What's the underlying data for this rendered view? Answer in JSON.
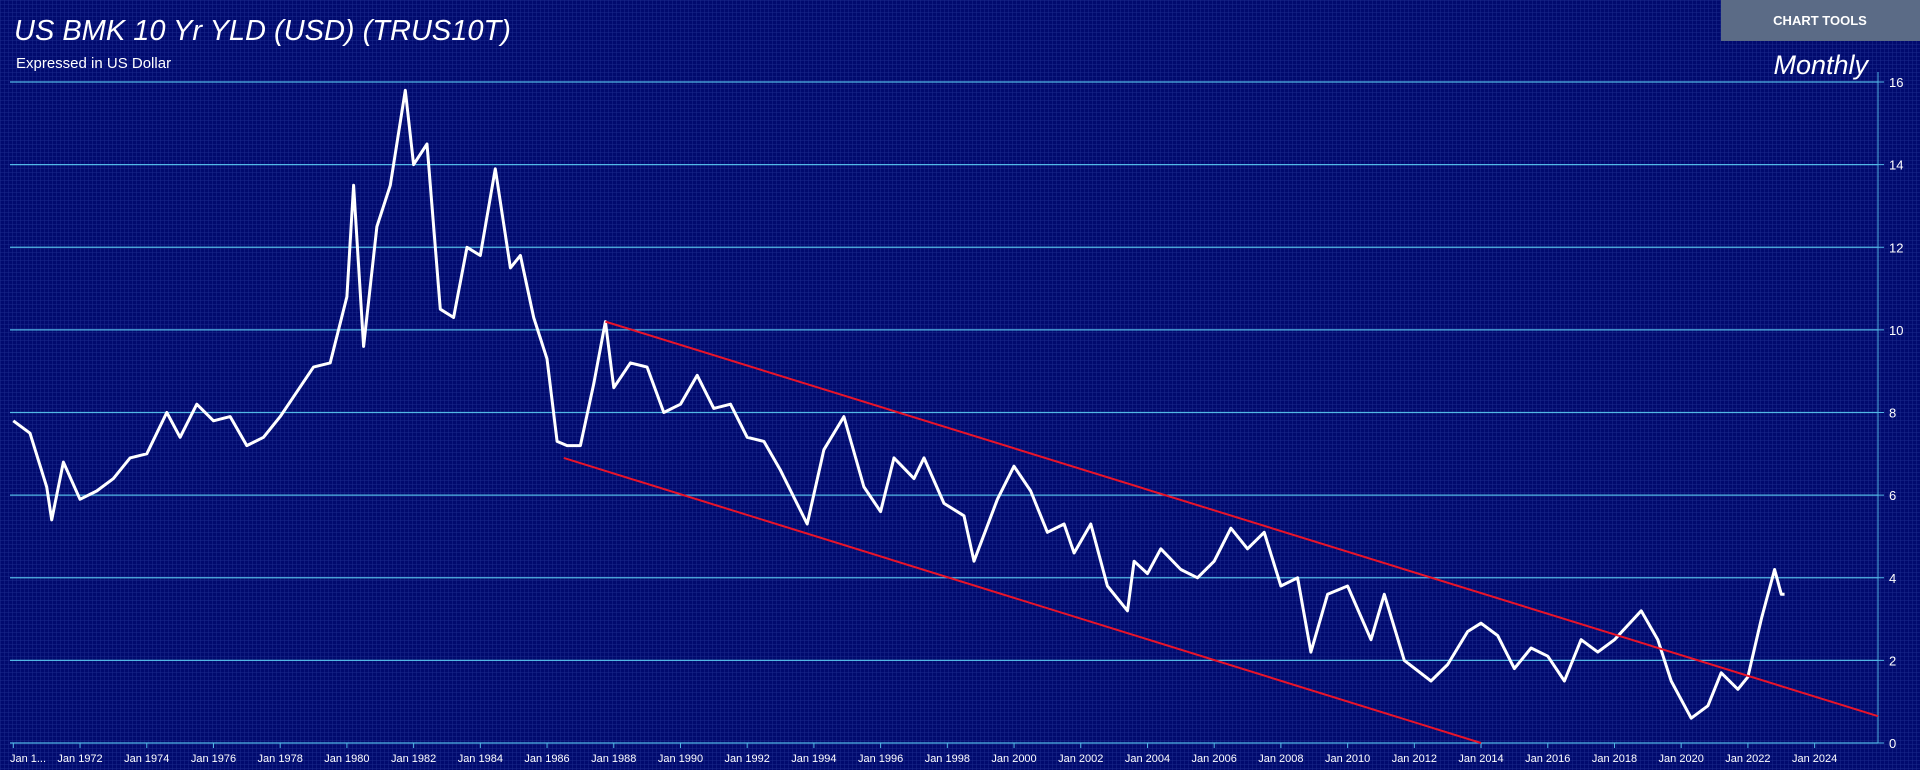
{
  "chart_data": {
    "type": "line",
    "title": "US BMK 10 Yr YLD (USD) (TRUS10T)",
    "subtitle": "Expressed in US Dollar",
    "frequency": "Monthly",
    "button": "CHART TOOLS",
    "color": "#ffffff",
    "trendline_color": "#e8142a",
    "grid": true,
    "xlim": [
      1969.9,
      2025.9
    ],
    "ylim": [
      0,
      16
    ],
    "yticks": [
      0,
      2,
      4,
      6,
      8,
      10,
      12,
      14,
      16
    ],
    "xticks": [
      {
        "value": 1970,
        "label": "Jan 1..."
      },
      {
        "value": 1972,
        "label": "Jan 1972"
      },
      {
        "value": 1974,
        "label": "Jan 1974"
      },
      {
        "value": 1976,
        "label": "Jan 1976"
      },
      {
        "value": 1978,
        "label": "Jan 1978"
      },
      {
        "value": 1980,
        "label": "Jan 1980"
      },
      {
        "value": 1982,
        "label": "Jan 1982"
      },
      {
        "value": 1984,
        "label": "Jan 1984"
      },
      {
        "value": 1986,
        "label": "Jan 1986"
      },
      {
        "value": 1988,
        "label": "Jan 1988"
      },
      {
        "value": 1990,
        "label": "Jan 1990"
      },
      {
        "value": 1992,
        "label": "Jan 1992"
      },
      {
        "value": 1994,
        "label": "Jan 1994"
      },
      {
        "value": 1996,
        "label": "Jan 1996"
      },
      {
        "value": 1998,
        "label": "Jan 1998"
      },
      {
        "value": 2000,
        "label": "Jan 2000"
      },
      {
        "value": 2002,
        "label": "Jan 2002"
      },
      {
        "value": 2004,
        "label": "Jan 2004"
      },
      {
        "value": 2006,
        "label": "Jan 2006"
      },
      {
        "value": 2008,
        "label": "Jan 2008"
      },
      {
        "value": 2010,
        "label": "Jan 2010"
      },
      {
        "value": 2012,
        "label": "Jan 2012"
      },
      {
        "value": 2014,
        "label": "Jan 2014"
      },
      {
        "value": 2016,
        "label": "Jan 2016"
      },
      {
        "value": 2018,
        "label": "Jan 2018"
      },
      {
        "value": 2020,
        "label": "Jan 2020"
      },
      {
        "value": 2022,
        "label": "Jan 2022"
      },
      {
        "value": 2024,
        "label": "Jan 2024"
      }
    ],
    "x": [
      1970.0,
      1970.5,
      1971.0,
      1971.15,
      1971.5,
      1972.0,
      1972.5,
      1973.0,
      1973.5,
      1974.0,
      1974.6,
      1975.0,
      1975.5,
      1976.0,
      1976.5,
      1977.0,
      1977.5,
      1978.0,
      1978.5,
      1979.0,
      1979.5,
      1980.0,
      1980.2,
      1980.5,
      1980.9,
      1981.3,
      1981.75,
      1982.0,
      1982.4,
      1982.8,
      1983.2,
      1983.6,
      1984.0,
      1984.45,
      1984.9,
      1985.2,
      1985.6,
      1986.0,
      1986.3,
      1986.6,
      1987.0,
      1987.4,
      1987.75,
      1988.0,
      1988.5,
      1989.0,
      1989.5,
      1990.0,
      1990.5,
      1991.0,
      1991.5,
      1992.0,
      1992.5,
      1993.0,
      1993.8,
      1994.3,
      1994.9,
      1995.5,
      1996.0,
      1996.4,
      1997.0,
      1997.3,
      1997.9,
      1998.5,
      1998.8,
      1999.5,
      2000.0,
      2000.5,
      2001.0,
      2001.5,
      2001.8,
      2002.3,
      2002.8,
      2003.4,
      2003.6,
      2004.0,
      2004.4,
      2005.0,
      2005.5,
      2006.0,
      2006.5,
      2007.0,
      2007.5,
      2008.0,
      2008.5,
      2008.9,
      2009.4,
      2010.0,
      2010.7,
      2011.1,
      2011.7,
      2012.5,
      2013.0,
      2013.6,
      2014.0,
      2014.5,
      2015.0,
      2015.5,
      2016.0,
      2016.5,
      2017.0,
      2017.5,
      2018.0,
      2018.8,
      2019.3,
      2019.7,
      2020.3,
      2020.8,
      2021.2,
      2021.7,
      2022.0,
      2022.4,
      2022.8,
      2023.0,
      2023.1
    ],
    "series": [
      {
        "name": "TRUS10T",
        "color": "#ffffff",
        "values": [
          7.8,
          7.5,
          6.2,
          5.4,
          6.8,
          5.9,
          6.1,
          6.4,
          6.9,
          7.0,
          8.0,
          7.4,
          8.2,
          7.8,
          7.9,
          7.2,
          7.4,
          7.9,
          8.5,
          9.1,
          9.2,
          10.8,
          13.5,
          9.6,
          12.5,
          13.5,
          15.8,
          14.0,
          14.5,
          10.5,
          10.3,
          12.0,
          11.8,
          13.9,
          11.5,
          11.8,
          10.3,
          9.3,
          7.3,
          7.2,
          7.2,
          8.7,
          10.2,
          8.6,
          9.2,
          9.1,
          8.0,
          8.2,
          8.9,
          8.1,
          8.2,
          7.4,
          7.3,
          6.6,
          5.3,
          7.1,
          7.9,
          6.2,
          5.6,
          6.9,
          6.4,
          6.9,
          5.8,
          5.5,
          4.4,
          5.9,
          6.7,
          6.1,
          5.1,
          5.3,
          4.6,
          5.3,
          3.8,
          3.2,
          4.4,
          4.1,
          4.7,
          4.2,
          4.0,
          4.4,
          5.2,
          4.7,
          5.1,
          3.8,
          4.0,
          2.2,
          3.6,
          3.8,
          2.5,
          3.6,
          2.0,
          1.5,
          1.9,
          2.7,
          2.9,
          2.6,
          1.8,
          2.3,
          2.1,
          1.5,
          2.5,
          2.2,
          2.5,
          3.2,
          2.5,
          1.5,
          0.6,
          0.9,
          1.7,
          1.3,
          1.6,
          3.0,
          4.2,
          3.6,
          3.6
        ]
      }
    ],
    "trendlines": [
      {
        "x": [
          1987.75,
          2025.9
        ],
        "y": [
          10.2,
          0.65
        ]
      },
      {
        "x": [
          1986.5,
          2014.0
        ],
        "y": [
          6.9,
          0.0
        ]
      }
    ]
  }
}
